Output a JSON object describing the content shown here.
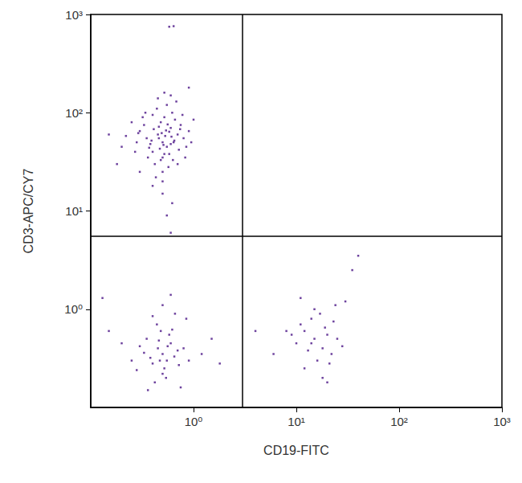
{
  "chart_data": {
    "type": "scatter",
    "x_label": "CD19-FITC",
    "y_label": "CD3-APC/CY7",
    "log": true,
    "grid": false,
    "color": "#4a1486",
    "marker": "square",
    "xlim": [
      0.1,
      1000
    ],
    "ylim": [
      0.1,
      1000
    ],
    "xticks": [
      {
        "value": 1,
        "label": "10⁰"
      },
      {
        "value": 10,
        "label": "10¹"
      },
      {
        "value": 100,
        "label": "10²"
      },
      {
        "value": 1000,
        "label": "10³"
      }
    ],
    "yticks": [
      {
        "value": 1,
        "label": "10⁰"
      },
      {
        "value": 10,
        "label": "10¹"
      },
      {
        "value": 100,
        "label": "10²"
      },
      {
        "value": 1000,
        "label": "10³"
      }
    ],
    "quadrant_lines": {
      "x": 3,
      "y": 5.5
    },
    "x": [
      0.5,
      0.45,
      0.55,
      0.6,
      0.4,
      0.35,
      0.65,
      0.5,
      0.48,
      0.7,
      0.3,
      0.52,
      0.42,
      0.58,
      0.62,
      0.38,
      0.72,
      0.46,
      0.54,
      0.33,
      0.28,
      0.8,
      0.44,
      0.66,
      0.5,
      0.57,
      0.4,
      0.75,
      0.36,
      0.6,
      0.47,
      0.53,
      0.49,
      0.41,
      0.63,
      0.27,
      0.85,
      0.9,
      0.22,
      0.55,
      0.45,
      0.68,
      0.32,
      0.5,
      0.43,
      0.7,
      0.25,
      0.78,
      0.39,
      0.61,
      0.51,
      0.46,
      0.58,
      0.37,
      0.64,
      0.29,
      0.52,
      0.74,
      0.48,
      0.56,
      0.2,
      0.95,
      0.34,
      0.6,
      0.52,
      0.5,
      0.62,
      0.4,
      0.55,
      0.6,
      0.9,
      0.15,
      0.58,
      0.64,
      0.18,
      1.0,
      0.3,
      0.83,
      0.5,
      0.45,
      0.55,
      0.6,
      0.4,
      0.35,
      0.65,
      0.5,
      0.48,
      0.7,
      0.3,
      0.52,
      0.42,
      0.58,
      0.38,
      0.72,
      0.46,
      0.54,
      0.33,
      0.28,
      0.8,
      0.44,
      0.66,
      0.25,
      0.9,
      0.2,
      1.2,
      1.5,
      0.15,
      0.6,
      0.5,
      0.75,
      0.36,
      0.62,
      0.47,
      0.13,
      0.85,
      0.4,
      1.8,
      0.56,
      15,
      12,
      18,
      20,
      10,
      14,
      22,
      16,
      11,
      19,
      25,
      13,
      17,
      21,
      9,
      28,
      15,
      12,
      18,
      23,
      8,
      30,
      40,
      35,
      24,
      11,
      20,
      14,
      4,
      6
    ],
    "values": [
      50,
      60,
      45,
      70,
      40,
      55,
      52,
      35,
      80,
      60,
      65,
      90,
      30,
      38,
      100,
      48,
      42,
      55,
      66,
      75,
      50,
      55,
      110,
      85,
      25,
      28,
      95,
      75,
      35,
      48,
      43,
      58,
      62,
      68,
      33,
      40,
      45,
      65,
      58,
      120,
      140,
      130,
      90,
      20,
      22,
      30,
      80,
      95,
      52,
      57,
      47,
      72,
      64,
      44,
      50,
      62,
      38,
      68,
      33,
      76,
      45,
      50,
      100,
      150,
      160,
      15,
      12,
      18,
      9,
      6,
      180,
      60,
      750,
      760,
      30,
      85,
      25,
      35,
      0.35,
      0.4,
      0.3,
      0.45,
      0.28,
      0.5,
      0.33,
      0.22,
      0.6,
      0.38,
      0.42,
      0.25,
      0.18,
      0.55,
      0.32,
      0.27,
      0.48,
      0.2,
      0.36,
      0.24,
      0.4,
      0.7,
      0.9,
      0.3,
      0.3,
      0.45,
      0.35,
      0.5,
      0.6,
      1.4,
      1.1,
      0.16,
      0.15,
      0.62,
      0.3,
      1.3,
      0.8,
      0.85,
      0.28,
      0.42,
      0.5,
      0.6,
      0.4,
      0.55,
      0.45,
      0.8,
      0.35,
      0.3,
      0.7,
      0.65,
      0.5,
      0.38,
      0.9,
      0.28,
      0.55,
      0.42,
      1.0,
      0.25,
      0.2,
      0.75,
      0.6,
      1.2,
      3.5,
      2.5,
      1.1,
      1.3,
      0.18,
      0.45,
      0.6,
      0.35
    ]
  }
}
